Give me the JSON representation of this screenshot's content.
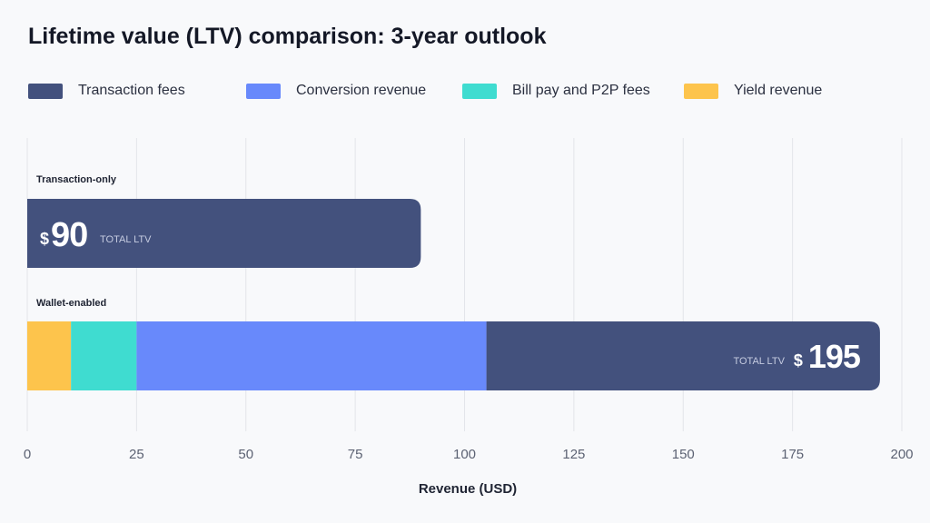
{
  "chart_data": {
    "type": "bar",
    "orientation": "horizontal",
    "stacked": true,
    "title": "Lifetime value (LTV) comparison: 3-year outlook",
    "xlabel": "Revenue (USD)",
    "ylabel": "",
    "xlim": [
      0,
      200
    ],
    "xticks": [
      0,
      25,
      50,
      75,
      100,
      125,
      150,
      175,
      200
    ],
    "grid": true,
    "legend_position": "top",
    "categories": [
      "Transaction-only",
      "Wallet-enabled"
    ],
    "series": [
      {
        "name": "Yield revenue",
        "color": "#fdc44c",
        "values": [
          0,
          10
        ]
      },
      {
        "name": "Bill pay and P2P fees",
        "color": "#3fdcd0",
        "values": [
          0,
          15
        ]
      },
      {
        "name": "Conversion revenue",
        "color": "#6889fb",
        "values": [
          0,
          80
        ]
      },
      {
        "name": "Transaction fees",
        "color": "#43517d",
        "values": [
          90,
          90
        ]
      }
    ],
    "legend_order": [
      "Transaction fees",
      "Conversion revenue",
      "Bill pay and P2P fees",
      "Yield revenue"
    ],
    "annotations": [
      {
        "category": "Transaction-only",
        "currency": "$",
        "value": "90",
        "label": "TOTAL LTV"
      },
      {
        "category": "Wallet-enabled",
        "currency": "$",
        "value": "195",
        "label": "TOTAL LTV"
      }
    ]
  }
}
